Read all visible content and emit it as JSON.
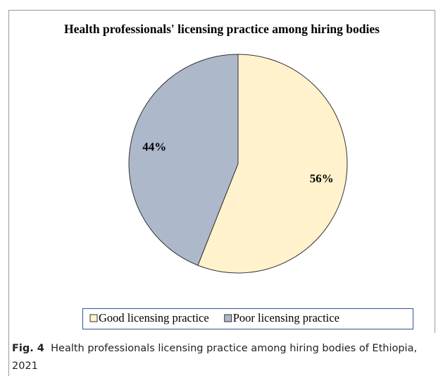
{
  "chart_data": {
    "type": "pie",
    "title": "Health professionals' licensing practice among hiring bodies",
    "categories": [
      "Good licensing practice",
      "Poor licensing practice"
    ],
    "values": [
      56,
      44
    ],
    "value_labels": [
      "56%",
      "44%"
    ],
    "colors": [
      "#fff2cc",
      "#adb9ca"
    ],
    "legend": "bottom"
  },
  "caption": {
    "label": "Fig. 4",
    "text": "Health professionals licensing practice among hiring bodies of Ethiopia, 2021"
  }
}
